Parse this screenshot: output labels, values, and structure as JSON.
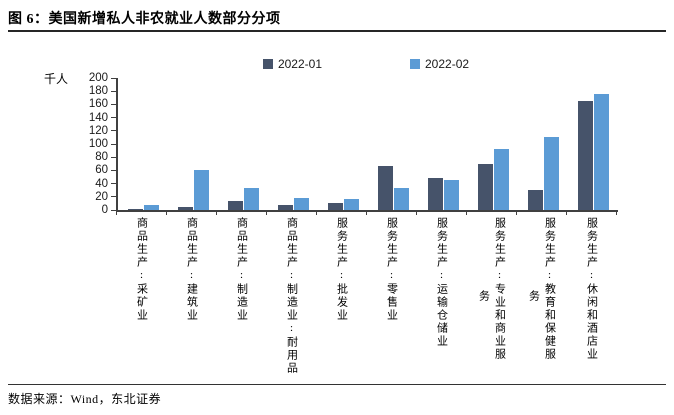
{
  "title": "图 6：美国新增私人非农就业人数部分分项",
  "footer": {
    "source": "数据来源：Wind，东北证券"
  },
  "chart_data": {
    "type": "bar",
    "title": "美国新增私人非农就业人数部分分项",
    "unit_label": "千人",
    "ylabel": "千人",
    "xlabel": "",
    "ylim": [
      0,
      200
    ],
    "ytick_step": 20,
    "grid": false,
    "legend_position": "top-center",
    "axis_color": "#404040",
    "categories": [
      "商品生产:采矿业",
      "商品生产:建筑业",
      "商品生产:制造业",
      "商品生产:制造业:耐用品",
      "服务生产:批发业",
      "服务生产:零售业",
      "服务生产:运输仓储业",
      "服务生产:专业和商业服务",
      "服务生产:教育和保健服务",
      "服务生产:休闲和酒店业"
    ],
    "category_label_lines": [
      [
        "商品生产:采矿业"
      ],
      [
        "商品生产:建筑业"
      ],
      [
        "商品生产:制造业"
      ],
      [
        "商品生产:制造业:耐用品"
      ],
      [
        "服务生产:批发业"
      ],
      [
        "服务生产:零售业"
      ],
      [
        "服务生产:运输仓储业"
      ],
      [
        "服务生产:专业和商业服",
        "务"
      ],
      [
        "服务生产:教育和保健服",
        "务"
      ],
      [
        "服务生产:休闲和酒店业"
      ]
    ],
    "series": [
      {
        "name": "2022-01",
        "color": "#46536A",
        "values": [
          1,
          5,
          14,
          7,
          10,
          66,
          48,
          70,
          30,
          165
        ]
      },
      {
        "name": "2022-02",
        "color": "#5B9BD5",
        "values": [
          8,
          60,
          34,
          18,
          16,
          34,
          45,
          93,
          110,
          176
        ]
      }
    ]
  }
}
